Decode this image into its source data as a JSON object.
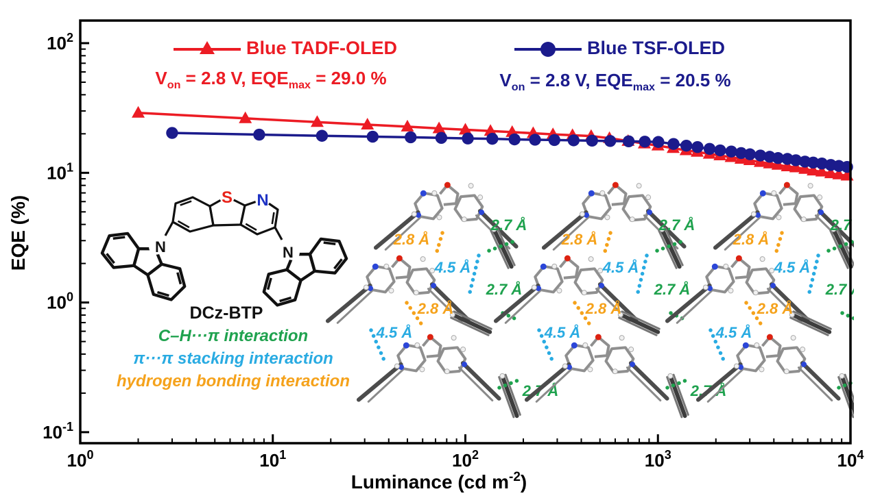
{
  "chart_data": {
    "type": "line",
    "title": "",
    "xlabel": "Luminance (cd m⁻²)",
    "ylabel": "EQE (%)",
    "xscale": "log",
    "yscale": "log",
    "xlim": [
      1,
      10000
    ],
    "ylim": [
      0.1,
      100
    ],
    "grid": false,
    "legend_position": "top-inside",
    "x_ticks": [
      {
        "base": "10",
        "exp": "0",
        "value": 1
      },
      {
        "base": "10",
        "exp": "1",
        "value": 10
      },
      {
        "base": "10",
        "exp": "2",
        "value": 100
      },
      {
        "base": "10",
        "exp": "3",
        "value": 1000
      },
      {
        "base": "10",
        "exp": "4",
        "value": 10000
      }
    ],
    "y_ticks": [
      {
        "base": "10",
        "exp": "2",
        "value": 100
      },
      {
        "base": "10",
        "exp": "1",
        "value": 10
      },
      {
        "base": "10",
        "exp": "0",
        "value": 1
      },
      {
        "base": "10",
        "exp": "-1",
        "value": 0.1
      }
    ],
    "series": [
      {
        "name": "Blue TADF-OLED",
        "color": "#EC1C24",
        "marker": "triangle",
        "v_on": "2.8 V",
        "eqe_max": "29.0 %",
        "x": [
          2,
          7.2,
          17,
          31,
          50,
          73,
          100,
          135,
          175,
          225,
          285,
          360,
          450,
          560,
          700,
          850,
          1000,
          1200,
          1400,
          1600,
          1850,
          2100,
          2400,
          2700,
          3000,
          3400,
          3800,
          4200,
          4700,
          5200,
          5800,
          6400,
          7100,
          7900,
          8700,
          9600
        ],
        "y": [
          29.0,
          26.3,
          24.6,
          23.5,
          22.7,
          22.0,
          21.5,
          21.0,
          20.6,
          20.2,
          19.8,
          19.5,
          19.2,
          18.5,
          17.6,
          16.8,
          16.2,
          15.5,
          14.9,
          14.5,
          14.0,
          13.6,
          13.2,
          12.8,
          12.5,
          12.1,
          11.8,
          11.5,
          11.2,
          11.0,
          10.7,
          10.4,
          10.2,
          9.9,
          9.7,
          9.5
        ]
      },
      {
        "name": "Blue TSF-OLED",
        "color": "#1B1B8C",
        "marker": "circle",
        "v_on": "2.8 V",
        "eqe_max": "20.5 %",
        "x": [
          3,
          8.5,
          18,
          33,
          52,
          75,
          103,
          138,
          180,
          230,
          290,
          365,
          455,
          565,
          705,
          855,
          1005,
          1205,
          1405,
          1605,
          1855,
          2105,
          2405,
          2705,
          3005,
          3405,
          3805,
          4205,
          4705,
          5205,
          5805,
          6405,
          7105,
          7905,
          8705,
          9605
        ],
        "y": [
          20.3,
          19.7,
          19.3,
          19.0,
          18.8,
          18.6,
          18.4,
          18.3,
          18.1,
          18.0,
          17.9,
          17.8,
          17.7,
          17.6,
          17.5,
          17.4,
          17.3,
          16.7,
          16.2,
          15.8,
          15.3,
          14.9,
          14.6,
          14.2,
          13.9,
          13.6,
          13.3,
          13.0,
          12.8,
          12.5,
          12.2,
          12.0,
          11.8,
          11.5,
          11.3,
          11.1
        ]
      }
    ]
  },
  "legend": {
    "tadf_label": "Blue TADF-OLED",
    "tsf_label": "Blue TSF-OLED",
    "tadf_von": [
      [
        "t",
        "V"
      ],
      [
        "sub",
        "on"
      ],
      [
        "t",
        " = 2.8 V, EQE"
      ],
      [
        "sub",
        "max"
      ],
      [
        "t",
        " = 29.0 %"
      ]
    ],
    "tsf_von": [
      [
        "t",
        "V"
      ],
      [
        "sub",
        "on"
      ],
      [
        "t",
        " = 2.8 V, EQE"
      ],
      [
        "sub",
        "max"
      ],
      [
        "t",
        " = 20.5 %"
      ]
    ]
  },
  "axis_render": {
    "x_title_pre": "Luminance (cd m",
    "x_title_sup": "-2",
    "x_title_post": ")",
    "y_title": "EQE (%)"
  },
  "inset": {
    "name": "DCz-BTP",
    "atom_labels": {
      "s": "S",
      "n_pyridine": "N",
      "n_carbazole_left": "N",
      "n_carbazole_right": "N"
    },
    "atom_colors": {
      "s": "#E8231A",
      "n": "#1F33C4",
      "bond": "#111111"
    },
    "interactions": [
      {
        "label": "C–H···π interaction",
        "color": "#1FA24E"
      },
      {
        "label": "π···π stacking interaction",
        "color": "#29ABE2"
      },
      {
        "label": "hydrogen bonding interaction",
        "color": "#F5A21B"
      }
    ]
  },
  "packing": {
    "columns": 3,
    "distance_labels": {
      "ch_pi": {
        "text": "2.7 Å",
        "color": "#1FA24E",
        "meaning": "C–H···π distance"
      },
      "pi_pi": {
        "text": "4.5 Å",
        "color": "#29ABE2",
        "meaning": "π···π stacking distance"
      },
      "h_bond": {
        "text": "2.8 Å",
        "color": "#F5A21B",
        "meaning": "hydrogen bond distance"
      }
    },
    "atom_colors": {
      "carbon": "#8f8f8f",
      "nitrogen": "#2B46D8",
      "oxygen": "#DD2211",
      "hydrogen": "#F0F0F0"
    }
  }
}
